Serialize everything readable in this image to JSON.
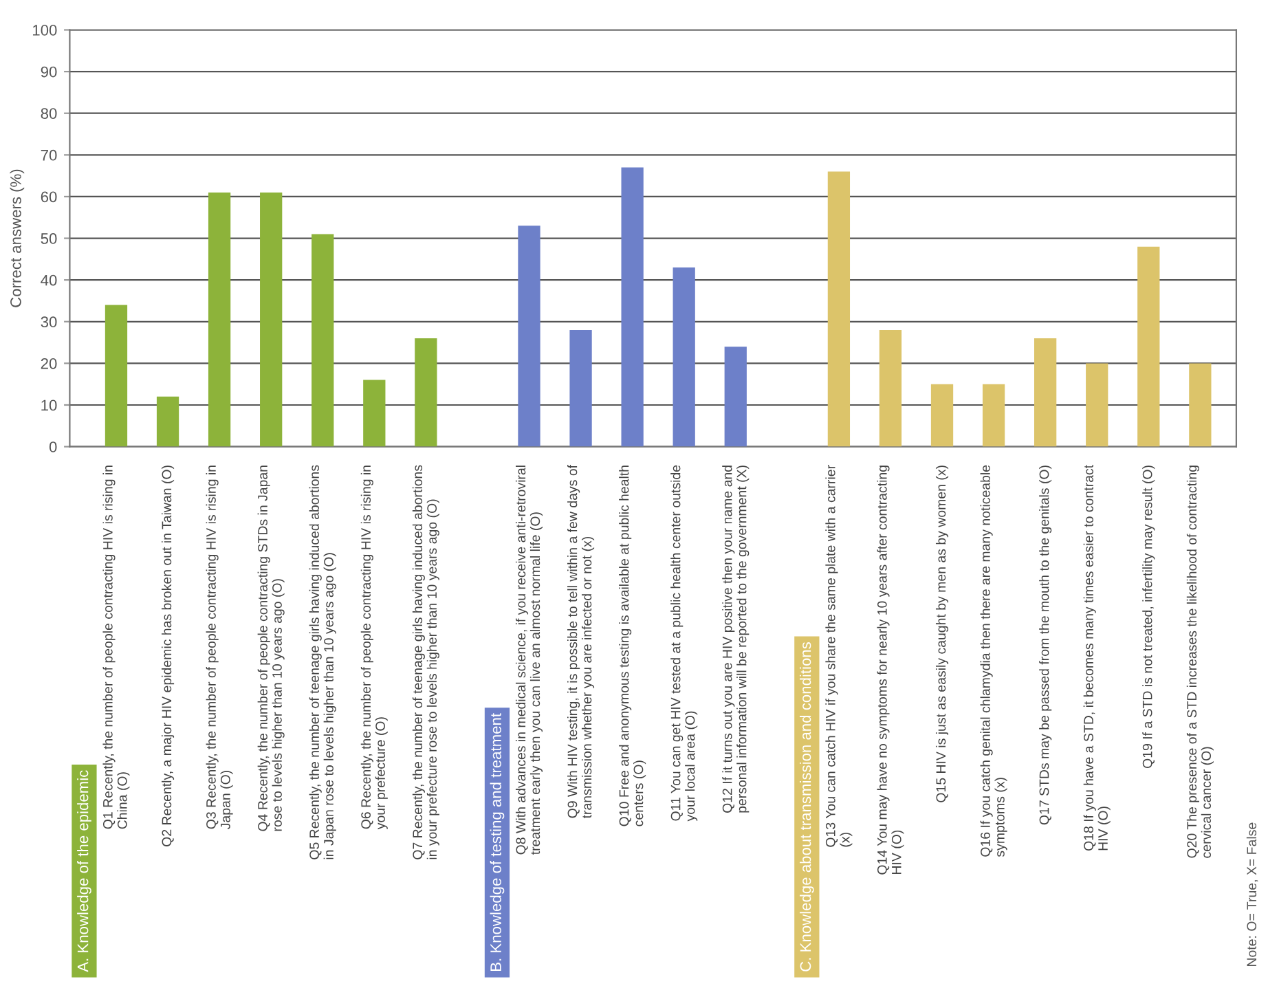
{
  "chart_data": {
    "type": "bar",
    "ylabel": "Correct answers (%)",
    "categories": [
      "Q1 Recently, the number of people contracting HIV is rising in\nChina (O)",
      "Q2 Recently, a major HIV epidemic has broken out in Taiwan (O)",
      "Q3 Recently, the number of people contracting HIV is rising in\nJapan (O)",
      "Q4 Recently, the number of people contracting STDs in Japan\nrose to levels higher than 10 years ago (O)",
      "Q5 Recently, the number of teenage girls having induced abortions\nin Japan rose to levels higher than 10 years ago (O)",
      "Q6 Recently, the number of people contracting HIV is rising in\nyour prefecture (O)",
      "Q7 Recently, the number of teenage girls having induced abortions\nin your prefecture rose to levels higher than 10 years ago (O)",
      null,
      "Q8 With advances in medical science, if you receive anti-retroviral\ntreatment early then you can live an almost normal life (O)",
      "Q9 With HIV testing, it is possible to tell within a few days of\ntransmission whether you are infected or not (x)",
      "Q10 Free and anonymous testing is available at public health\ncenters (O)",
      "Q11 You can get HIV tested at a public health center outside\nyour local area (O)",
      "Q12 If it turns out you are HIV positive then your name and\npersonal information will be reported to the government (X)",
      null,
      "Q13 You can catch HIV if you share the same plate with a carrier\n(x)",
      "Q14 You may have no symptoms for nearly 10 years after contracting\nHIV (O)",
      "Q15 HIV is just as easily caught by men as by women (x)",
      "Q16 If you catch genital chlamydia then there are many noticeable\nsymptoms (x)",
      "Q17 STDs may be passed from the mouth to the genitals (O)",
      "Q18 If you have a STD, it becomes many times easier to contract\nHIV (O)",
      "Q19 If a STD is not treated, infertility may result (O)",
      "Q20 The presence of a STD increases the likelihood of contracting\ncervical cancer (O)"
    ],
    "values": [
      34,
      12,
      61,
      61,
      51,
      16,
      26,
      null,
      53,
      28,
      67,
      43,
      24,
      null,
      66,
      28,
      15,
      15,
      26,
      20,
      48,
      20
    ],
    "colors": [
      "#8db33a",
      "#8db33a",
      "#8db33a",
      "#8db33a",
      "#8db33a",
      "#8db33a",
      "#8db33a",
      null,
      "#6d80c9",
      "#6d80c9",
      "#6d80c9",
      "#6d80c9",
      "#6d80c9",
      null,
      "#dcc46a",
      "#dcc46a",
      "#dcc46a",
      "#dcc46a",
      "#dcc46a",
      "#dcc46a",
      "#dcc46a",
      "#dcc46a"
    ],
    "ylim": [
      0,
      100
    ],
    "yticks": [
      0,
      10,
      20,
      30,
      40,
      50,
      60,
      70,
      80,
      90,
      100
    ],
    "grid": "y",
    "annotations": [
      "A. Knowledge of the epidemic",
      "B. Knowledge of testing and treatment",
      "C. Knowledge about transmission and conditions",
      "Note: O= True, X= False"
    ]
  }
}
